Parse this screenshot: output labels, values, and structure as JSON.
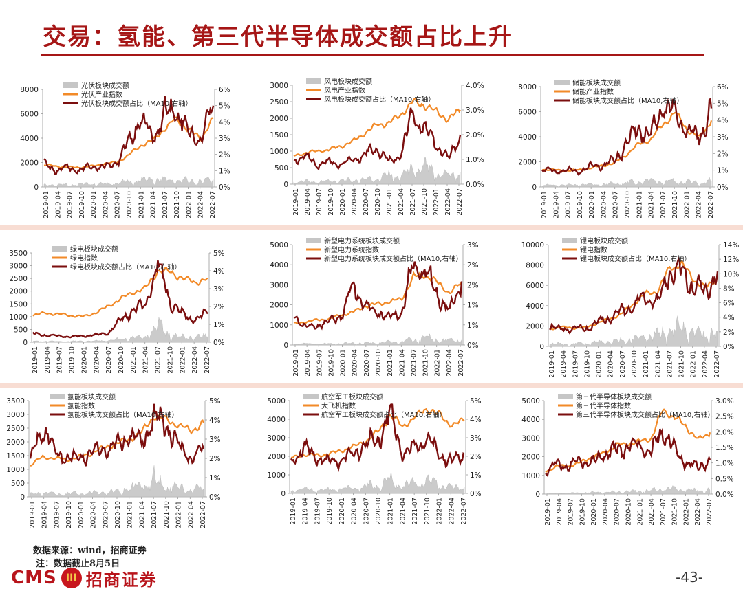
{
  "page": {
    "title": "交易：氢能、第三代半导体成交额占比上升",
    "source": "数据来源：wind，招商证券",
    "note": "注：数据截止8月5日",
    "page_number": "-43-",
    "logo_text_en": "CMS",
    "logo_badge": "III",
    "logo_text_cn": "招商证券"
  },
  "colors": {
    "title": "#a61616",
    "volume": "#c6c6c6",
    "index": "#f28a28",
    "ratio": "#7b0e0e",
    "band": "#f8ddd3"
  },
  "chart_data": [
    {
      "type": "line",
      "series_names": [
        "光伏板块成交额",
        "光伏产业指数",
        "光伏板块成交额占比（MA10,右轴）"
      ],
      "left_ticks": [
        "0",
        "2000",
        "4000",
        "6000",
        "8000"
      ],
      "right_ticks": [
        "0%",
        "1%",
        "2%",
        "3%",
        "4%",
        "5%",
        "6%"
      ],
      "ylim": [
        0,
        8000
      ],
      "y2lim": [
        0,
        6
      ],
      "x_labels": [
        "2019-01",
        "2019-04",
        "2019-07",
        "2019-10",
        "2020-01",
        "2020-04",
        "2020-07",
        "2020-10",
        "2021-01",
        "2021-04",
        "2021-07",
        "2021-10",
        "2022-01",
        "2022-04",
        "2022-07"
      ],
      "volume": [
        150,
        180,
        160,
        200,
        230,
        220,
        300,
        400,
        520,
        600,
        500,
        560,
        450,
        400,
        600
      ],
      "index": [
        1800,
        1700,
        1600,
        1600,
        1700,
        1900,
        2000,
        2600,
        3400,
        3800,
        4800,
        5600,
        4600,
        4000,
        5600
      ],
      "ratio": [
        1.4,
        1.0,
        1.2,
        1.0,
        1.3,
        1.2,
        1.5,
        2.8,
        4.2,
        3.0,
        4.5,
        4.8,
        3.2,
        3.0,
        5.0
      ]
    },
    {
      "type": "line",
      "series_names": [
        "风电板块成交额",
        "风电产业指数",
        "风电板块成交额占比（MA10,右轴）"
      ],
      "left_ticks": [
        "0",
        "500",
        "1000",
        "1500",
        "2000",
        "2500",
        "3000"
      ],
      "right_ticks": [
        "0.0%",
        "1.0%",
        "2.0%",
        "3.0%",
        "4.0%"
      ],
      "ylim": [
        0,
        3000
      ],
      "y2lim": [
        0,
        4
      ],
      "x_labels": [
        "2019-01",
        "2019-04",
        "2019-07",
        "2019-10",
        "2020-01",
        "2020-04",
        "2020-07",
        "2020-10",
        "2021-01",
        "2021-04",
        "2021-07",
        "2021-10",
        "2022-01",
        "2022-04",
        "2022-07"
      ],
      "volume": [
        60,
        80,
        70,
        90,
        100,
        110,
        140,
        170,
        250,
        230,
        400,
        450,
        320,
        250,
        350
      ],
      "index": [
        850,
        950,
        1000,
        1050,
        1150,
        1300,
        1550,
        1800,
        1850,
        2100,
        2500,
        2400,
        2200,
        1950,
        2250
      ],
      "ratio": [
        1.0,
        1.1,
        0.8,
        0.9,
        0.8,
        1.0,
        1.2,
        1.5,
        0.9,
        1.2,
        2.8,
        2.2,
        1.6,
        1.0,
        2.0
      ]
    },
    {
      "type": "line",
      "series_names": [
        "储能板块成交额",
        "储能产业指数",
        "储能板块成交额占比（MA10,右轴）"
      ],
      "left_ticks": [
        "0",
        "2000",
        "4000",
        "6000",
        "8000"
      ],
      "right_ticks": [
        "0%",
        "1%",
        "2%",
        "3%",
        "4%",
        "5%",
        "6%"
      ],
      "ylim": [
        0,
        8000
      ],
      "y2lim": [
        0,
        6
      ],
      "x_labels": [
        "2019-01",
        "2019-04",
        "2019-07",
        "2019-10",
        "2020-01",
        "2020-04",
        "2020-07",
        "2020-10",
        "2021-01",
        "2021-04",
        "2021-07",
        "2021-10",
        "2022-01",
        "2022-04",
        "2022-07"
      ],
      "volume": [
        120,
        140,
        130,
        160,
        190,
        180,
        240,
        320,
        400,
        460,
        380,
        420,
        350,
        300,
        450
      ],
      "index": [
        1400,
        1350,
        1300,
        1350,
        1500,
        1700,
        1900,
        2600,
        3400,
        3800,
        5000,
        5900,
        4600,
        3900,
        5300
      ],
      "ratio": [
        1.1,
        0.9,
        1.0,
        0.9,
        1.2,
        1.3,
        1.6,
        2.6,
        3.6,
        3.1,
        5.0,
        4.3,
        3.4,
        2.9,
        4.7
      ]
    },
    {
      "type": "line",
      "series_names": [
        "绿电板块成交额",
        "绿电指数",
        "绿电板块成交额占比（MA10,右轴）"
      ],
      "left_ticks": [
        "0",
        "500",
        "1000",
        "1500",
        "2000",
        "2500",
        "3000",
        "3500"
      ],
      "right_ticks": [
        "0%",
        "1%",
        "2%",
        "3%",
        "4%",
        "5%"
      ],
      "ylim": [
        0,
        3500
      ],
      "y2lim": [
        0,
        5
      ],
      "x_labels": [
        "2019-01",
        "2019-04",
        "2019-07",
        "2019-10",
        "2020-01",
        "2020-04",
        "2020-07",
        "2020-10",
        "2021-01",
        "2021-04",
        "2021-07",
        "2021-10",
        "2022-01",
        "2022-04",
        "2022-07"
      ],
      "volume": [
        40,
        35,
        30,
        30,
        40,
        45,
        60,
        110,
        160,
        180,
        650,
        280,
        200,
        180,
        220
      ],
      "index": [
        1050,
        1150,
        1100,
        1050,
        1000,
        1150,
        1400,
        1700,
        1950,
        2100,
        2800,
        2750,
        2500,
        2350,
        2500
      ],
      "ratio": [
        0.5,
        0.4,
        0.35,
        0.3,
        0.35,
        0.4,
        0.5,
        1.2,
        1.8,
        2.0,
        4.4,
        2.3,
        1.5,
        1.3,
        1.6
      ]
    },
    {
      "type": "line",
      "series_names": [
        "新型电力系统板块成交额",
        "新型电力系统指数",
        "新型电力系统板块成交额占比（MA10,右轴）"
      ],
      "left_ticks": [
        "0",
        "1000",
        "2000",
        "3000",
        "4000",
        "5000"
      ],
      "right_ticks": [
        "0%",
        "1%",
        "1%",
        "2%",
        "2%",
        "3%"
      ],
      "ylim": [
        0,
        5000
      ],
      "y2lim": [
        0,
        3
      ],
      "x_labels": [
        "2019-01",
        "2019-04",
        "2019-07",
        "2019-10",
        "2020-01",
        "2020-04",
        "2020-07",
        "2020-10",
        "2021-01",
        "2021-04",
        "2021-07",
        "2021-10",
        "2022-01",
        "2022-04",
        "2022-07"
      ],
      "volume": [
        50,
        60,
        55,
        60,
        70,
        80,
        90,
        100,
        130,
        150,
        300,
        330,
        250,
        200,
        250
      ],
      "index": [
        1050,
        1150,
        1250,
        1300,
        1500,
        1650,
        1950,
        2050,
        2150,
        2300,
        3400,
        3500,
        3100,
        2600,
        3100
      ],
      "ratio": [
        0.9,
        0.5,
        0.6,
        0.7,
        0.9,
        1.8,
        1.1,
        1.0,
        0.8,
        1.0,
        2.4,
        2.2,
        1.5,
        1.0,
        1.9
      ]
    },
    {
      "type": "line",
      "series_names": [
        "锂电板块成交额",
        "锂电指数",
        "锂电板块成交额占比（MA10,右轴）"
      ],
      "left_ticks": [
        "0",
        "2000",
        "4000",
        "6000",
        "8000",
        "10000"
      ],
      "right_ticks": [
        "0%",
        "2%",
        "4%",
        "6%",
        "8%",
        "10%",
        "12%",
        "14%"
      ],
      "ylim": [
        0,
        10000
      ],
      "y2lim": [
        0,
        14
      ],
      "x_labels": [
        "2019-01",
        "2019-04",
        "2019-07",
        "2019-10",
        "2020-01",
        "2020-04",
        "2020-07",
        "2020-10",
        "2021-01",
        "2021-04",
        "2021-07",
        "2021-10",
        "2022-01",
        "2022-04",
        "2022-07"
      ],
      "volume": [
        200,
        250,
        230,
        280,
        380,
        420,
        520,
        700,
        900,
        1000,
        1500,
        1700,
        1300,
        1100,
        1500
      ],
      "index": [
        1700,
        1900,
        1800,
        1850,
        2300,
        2700,
        3200,
        4200,
        5200,
        5400,
        7700,
        8100,
        6600,
        5700,
        6800
      ],
      "ratio": [
        2.8,
        2.3,
        2.5,
        2.4,
        3.3,
        4.0,
        4.8,
        5.6,
        6.8,
        6.0,
        10.5,
        10.2,
        8.2,
        7.5,
        10.3
      ]
    },
    {
      "type": "line",
      "series_names": [
        "氢能板块成交额",
        "氢能指数",
        "氢能板块成交额占比（MA10,右轴）"
      ],
      "left_ticks": [
        "0",
        "500",
        "1000",
        "1500",
        "2000",
        "2500",
        "3000",
        "3500"
      ],
      "right_ticks": [
        "0%",
        "1%",
        "2%",
        "3%",
        "4%",
        "5%"
      ],
      "ylim": [
        0,
        3500
      ],
      "y2lim": [
        0,
        5
      ],
      "x_labels": [
        "2019-01",
        "2019-04",
        "2019-07",
        "2019-10",
        "2020-01",
        "2020-04",
        "2020-07",
        "2020-10",
        "2021-01",
        "2021-04",
        "2021-07",
        "2021-10",
        "2022-01",
        "2022-04",
        "2022-07"
      ],
      "volume": [
        80,
        150,
        100,
        110,
        120,
        140,
        160,
        200,
        300,
        400,
        600,
        380,
        320,
        260,
        300
      ],
      "index": [
        1150,
        1450,
        1400,
        1350,
        1450,
        1600,
        1800,
        1950,
        2100,
        2350,
        2950,
        2800,
        2600,
        2400,
        2700
      ],
      "ratio": [
        1.8,
        3.8,
        2.3,
        2.0,
        2.0,
        2.3,
        2.5,
        2.6,
        3.2,
        2.8,
        4.1,
        3.8,
        2.6,
        2.0,
        2.5
      ]
    },
    {
      "type": "line",
      "series_names": [
        "航空军工板块成交额",
        "大飞机指数",
        "航空军工板块成交额占比（MA10,右轴）"
      ],
      "left_ticks": [
        "0",
        "1000",
        "2000",
        "3000",
        "4000",
        "5000"
      ],
      "right_ticks": [
        "0%",
        "1%",
        "2%",
        "3%",
        "4%",
        "5%"
      ],
      "ylim": [
        0,
        5000
      ],
      "y2lim": [
        0,
        5
      ],
      "x_labels": [
        "2019-01",
        "2019-04",
        "2019-07",
        "2019-10",
        "2020-01",
        "2020-04",
        "2020-07",
        "2020-10",
        "2021-01",
        "2021-04",
        "2021-07",
        "2021-10",
        "2022-01",
        "2022-04",
        "2022-07"
      ],
      "volume": [
        150,
        220,
        180,
        200,
        250,
        280,
        380,
        500,
        700,
        400,
        500,
        650,
        450,
        300,
        350
      ],
      "index": [
        1900,
        2100,
        2050,
        2100,
        2300,
        2500,
        2800,
        3300,
        4200,
        3600,
        4100,
        4600,
        4200,
        3700,
        3900
      ],
      "ratio": [
        1.7,
        2.4,
        2.0,
        1.7,
        1.8,
        2.1,
        2.6,
        2.9,
        4.3,
        2.2,
        2.5,
        3.0,
        2.1,
        1.7,
        2.1
      ]
    },
    {
      "type": "line",
      "series_names": [
        "第三代半导体板块成交额",
        "第三代半导体指数",
        "第三代半导体板块成交额占比（MA10,右轴）"
      ],
      "left_ticks": [
        "0",
        "1000",
        "2000",
        "3000",
        "4000",
        "5000"
      ],
      "right_ticks": [
        "0.0%",
        "0.5%",
        "1.0%",
        "1.5%",
        "2.0%",
        "2.5%",
        "3.0%"
      ],
      "ylim": [
        0,
        5000
      ],
      "y2lim": [
        0,
        3
      ],
      "x_labels": [
        "2019-01",
        "2019-04",
        "2019-07",
        "2019-10",
        "2020-01",
        "2020-04",
        "2020-07",
        "2020-10",
        "2021-01",
        "2021-04",
        "2021-07",
        "2021-10",
        "2022-01",
        "2022-04",
        "2022-07"
      ],
      "volume": [
        30,
        40,
        50,
        60,
        80,
        90,
        110,
        130,
        160,
        200,
        300,
        260,
        220,
        180,
        200
      ],
      "index": [
        1200,
        1500,
        1500,
        1700,
        2000,
        2200,
        2600,
        2700,
        2800,
        3000,
        4500,
        4100,
        3600,
        2900,
        3300
      ],
      "ratio": [
        0.7,
        1.0,
        0.9,
        1.1,
        1.0,
        1.3,
        1.4,
        1.5,
        1.6,
        1.3,
        2.1,
        1.4,
        1.0,
        0.9,
        1.1
      ]
    }
  ]
}
